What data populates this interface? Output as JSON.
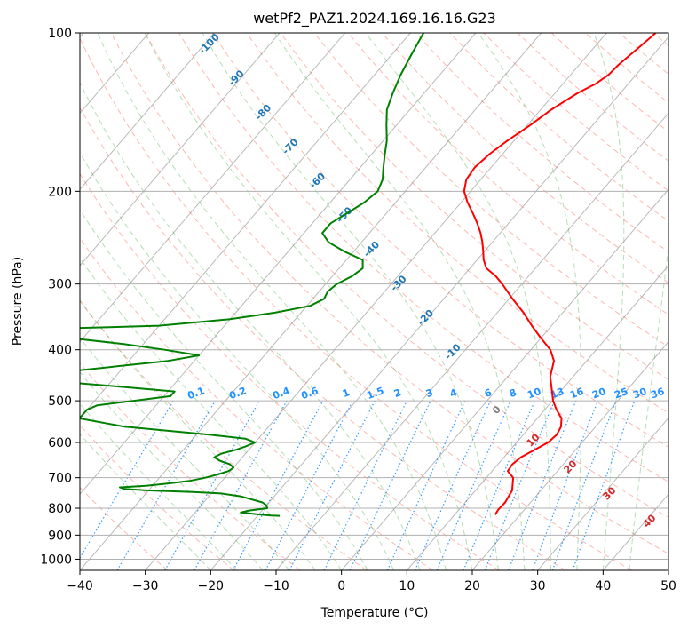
{
  "chart_data": {
    "type": "line",
    "title": "wetPf2_PAZ1.2024.169.16.16.G23",
    "xlabel": "Temperature (°C)",
    "ylabel": "Pressure (hPa)",
    "xlim": [
      -40,
      50
    ],
    "ylim": [
      1050,
      100
    ],
    "y_scale": "log",
    "skew_t": true,
    "grid": true,
    "x_ticks": [
      "−40",
      "−30",
      "−20",
      "−10",
      "0",
      "10",
      "20",
      "30",
      "40",
      "50"
    ],
    "y_ticks": [
      "100",
      "200",
      "300",
      "400",
      "500",
      "600",
      "700",
      "800",
      "900",
      "1000"
    ],
    "series": [
      {
        "color": "#ff0000",
        "pressure": [
          823,
          805,
          780,
          740,
          700,
          680,
          660,
          640,
          620,
          600,
          580,
          560,
          540,
          520,
          500,
          470,
          450,
          420,
          400,
          380,
          360,
          340,
          320,
          300,
          290,
          280,
          270,
          260,
          250,
          240,
          230,
          220,
          210,
          200,
          190,
          180,
          170,
          160,
          150,
          140,
          130,
          125,
          120,
          115,
          110,
          105,
          100
        ],
        "temperature": [
          16.2,
          16.0,
          16.1,
          15.6,
          14.1,
          12.4,
          12.2,
          12.6,
          13.7,
          14.8,
          15.1,
          14.7,
          13.7,
          11.8,
          10.1,
          8.0,
          6.5,
          5.0,
          3.0,
          0.0,
          -3.0,
          -6.0,
          -9.5,
          -13.0,
          -15.0,
          -17.5,
          -19.0,
          -20.2,
          -21.5,
          -23.0,
          -24.8,
          -26.8,
          -29.0,
          -31.0,
          -32.2,
          -32.5,
          -32.0,
          -31.0,
          -29.6,
          -28.4,
          -26.5,
          -25.0,
          -24.2,
          -24.0,
          -23.5,
          -23.0,
          -22.5
        ]
      },
      {
        "color": "#008000",
        "pressure": [
          827,
          826,
          822,
          815,
          808,
          800,
          790,
          780,
          770,
          760,
          750,
          745,
          740,
          735,
          730,
          725,
          718,
          710,
          700,
          690,
          680,
          670,
          660,
          650,
          640,
          630,
          620,
          610,
          600,
          590,
          580,
          560,
          540,
          520,
          510,
          500,
          490,
          480,
          470,
          460,
          450,
          440,
          420,
          410,
          400,
          390,
          380,
          370,
          365,
          360,
          350,
          340,
          330,
          320,
          310,
          300,
          290,
          280,
          270,
          260,
          250,
          240,
          230,
          220,
          210,
          200,
          190,
          180,
          170,
          160,
          150,
          140,
          130,
          120,
          110,
          100
        ],
        "temperature": [
          -16.6,
          -18.0,
          -20.0,
          -23.0,
          -22.0,
          -19.5,
          -20.0,
          -21.0,
          -23.0,
          -25.0,
          -28.5,
          -33.0,
          -40.0,
          -44.0,
          -44.8,
          -41.0,
          -38.0,
          -35.0,
          -33.0,
          -31.5,
          -30.3,
          -30.0,
          -31.0,
          -33.0,
          -34.3,
          -33.7,
          -32.0,
          -30.9,
          -30.0,
          -32.0,
          -38.0,
          -52.0,
          -60.0,
          -60.0,
          -59.0,
          -54.0,
          -49.0,
          -49.0,
          -58.0,
          -68.0,
          -72.0,
          -68.0,
          -54.0,
          -50.0,
          -56.0,
          -63.0,
          -72.0,
          -80.0,
          -76.0,
          -60.0,
          -50.0,
          -44.0,
          -39.5,
          -38.3,
          -38.7,
          -38.3,
          -37.0,
          -36.4,
          -37.5,
          -41.5,
          -45.0,
          -47.2,
          -47.2,
          -46.0,
          -44.8,
          -44.2,
          -45.0,
          -46.5,
          -48.0,
          -49.5,
          -51.5,
          -53.5,
          -54.8,
          -56.0,
          -57.0,
          -58.0
        ]
      }
    ],
    "dry_adiabat_labels": [
      "-100",
      "-90",
      "-80",
      "-70",
      "-60",
      "-50",
      "-40",
      "-30",
      "-20",
      "-10"
    ],
    "mixing_ratio_labels": [
      "0.1",
      "0.2",
      "0.4",
      "0.6",
      "1",
      "1.5",
      "2",
      "3",
      "4",
      "6",
      "8",
      "10",
      "13",
      "16",
      "20",
      "25",
      "30",
      "36"
    ],
    "moist_adiabat_labels": [
      "0",
      "10",
      "20",
      "30",
      "40"
    ],
    "colors": {
      "dry_adiabat": "#fa8072",
      "moist_adiabat": "#2ca02c",
      "mixing_ratio": "#1e90ff",
      "dry_label": "#1f77b4",
      "moist_label": "#d62728",
      "isotherm": "#808080",
      "grid": "#b0b0b0"
    }
  }
}
